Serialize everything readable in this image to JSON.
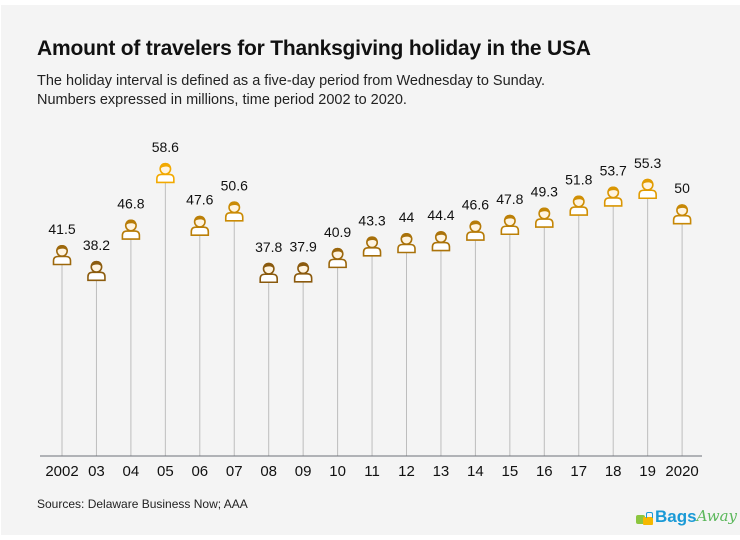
{
  "chart_data": {
    "type": "lollipop",
    "title": "Amount of travelers for Thanksgiving holiday in the USA",
    "subtitle": [
      "The holiday interval is defined as a five-day period from Wednesday to Sunday.",
      "Numbers expressed in millions, time period 2002 to 2020."
    ],
    "xlabel": "",
    "ylabel": "",
    "unit": "millions",
    "categories": [
      "2002",
      "03",
      "04",
      "05",
      "06",
      "07",
      "08",
      "09",
      "10",
      "11",
      "12",
      "13",
      "14",
      "15",
      "16",
      "17",
      "18",
      "19",
      "2020"
    ],
    "values": [
      41.5,
      38.2,
      46.8,
      58.6,
      47.6,
      50.6,
      37.8,
      37.9,
      40.9,
      43.3,
      44,
      44.4,
      46.6,
      47.8,
      49.3,
      51.8,
      53.7,
      55.3,
      50
    ],
    "labels": [
      "41.5",
      "38.2",
      "46.8",
      "58.6",
      "47.6",
      "50.6",
      "37.8",
      "37.9",
      "40.9",
      "43.3",
      "44",
      "44.4",
      "46.6",
      "47.8",
      "49.3",
      "51.8",
      "53.7",
      "55.3",
      "50"
    ],
    "marker": "person-icon",
    "grid": false,
    "legend": "none",
    "colors": {
      "low": "#8a5a0e",
      "high": "#f2a900",
      "stem": "#bdbdbd",
      "axis": "#6b6f78"
    }
  },
  "footer": {
    "source": "Sources: Delaware Business Now;  AAA",
    "logo_part1": "Bags",
    "logo_part2": "Away"
  }
}
